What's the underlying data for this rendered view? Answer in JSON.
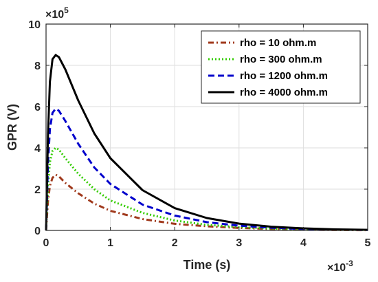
{
  "chart_data": {
    "type": "line",
    "xlabel": "Time (s)",
    "ylabel": "GPR (V)",
    "xlim": [
      0,
      5
    ],
    "ylim": [
      0,
      10
    ],
    "x_exponent_base": "×10",
    "x_exponent": "-3",
    "y_exponent_base": "×10",
    "y_exponent": "5",
    "xticks": [
      "0",
      "1",
      "2",
      "3",
      "4",
      "5"
    ],
    "yticks": [
      "0",
      "2",
      "4",
      "6",
      "8",
      "10"
    ],
    "grid": true,
    "legend_position": "top-right",
    "series": [
      {
        "name": "rho = 10 ohm.m",
        "color": "#a0391c",
        "dash": "dash-dot",
        "x": [
          0,
          0.03,
          0.06,
          0.1,
          0.15,
          0.2,
          0.3,
          0.5,
          0.75,
          1.0,
          1.5,
          2.0,
          2.5,
          3.0,
          3.5,
          4.0,
          4.5,
          5.0
        ],
        "y": [
          0,
          1.4,
          2.15,
          2.55,
          2.7,
          2.62,
          2.3,
          1.8,
          1.3,
          0.95,
          0.55,
          0.32,
          0.2,
          0.12,
          0.07,
          0.04,
          0.02,
          0.01
        ]
      },
      {
        "name": "rho = 300 ohm.m",
        "color": "#33cc00",
        "dash": "dotted",
        "x": [
          0,
          0.03,
          0.06,
          0.1,
          0.15,
          0.2,
          0.3,
          0.5,
          0.75,
          1.0,
          1.5,
          2.0,
          2.5,
          3.0,
          3.5,
          4.0,
          4.5,
          5.0
        ],
        "y": [
          0,
          2.1,
          3.3,
          3.85,
          4.0,
          3.92,
          3.5,
          2.75,
          2.0,
          1.45,
          0.85,
          0.48,
          0.27,
          0.16,
          0.09,
          0.05,
          0.03,
          0.02
        ]
      },
      {
        "name": "rho = 1200 ohm.m",
        "color": "#0000cc",
        "dash": "dashed",
        "x": [
          0,
          0.03,
          0.06,
          0.1,
          0.15,
          0.2,
          0.3,
          0.5,
          0.75,
          1.0,
          1.5,
          2.0,
          2.5,
          3.0,
          3.5,
          4.0,
          4.5,
          5.0
        ],
        "y": [
          0,
          3.2,
          4.9,
          5.7,
          5.9,
          5.8,
          5.3,
          4.2,
          3.05,
          2.25,
          1.25,
          0.72,
          0.4,
          0.23,
          0.13,
          0.07,
          0.04,
          0.02
        ]
      },
      {
        "name": "rho = 4000 ohm.m",
        "color": "#000000",
        "dash": "solid",
        "x": [
          0,
          0.03,
          0.06,
          0.1,
          0.15,
          0.2,
          0.3,
          0.5,
          0.75,
          1.0,
          1.5,
          2.0,
          2.5,
          3.0,
          3.5,
          4.0,
          4.5,
          5.0
        ],
        "y": [
          0,
          4.6,
          7.2,
          8.3,
          8.5,
          8.4,
          7.8,
          6.3,
          4.7,
          3.5,
          1.95,
          1.08,
          0.6,
          0.33,
          0.18,
          0.1,
          0.05,
          0.03
        ]
      }
    ]
  }
}
